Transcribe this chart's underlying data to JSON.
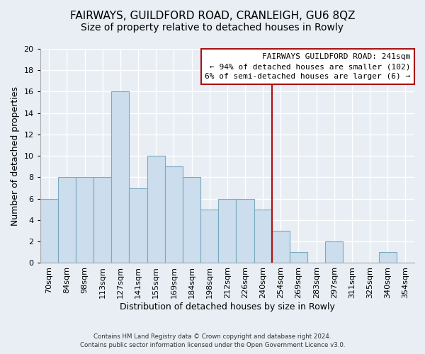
{
  "title": "FAIRWAYS, GUILDFORD ROAD, CRANLEIGH, GU6 8QZ",
  "subtitle": "Size of property relative to detached houses in Rowly",
  "xlabel": "Distribution of detached houses by size in Rowly",
  "ylabel": "Number of detached properties",
  "footer_line1": "Contains HM Land Registry data © Crown copyright and database right 2024.",
  "footer_line2": "Contains public sector information licensed under the Open Government Licence v3.0.",
  "bar_labels": [
    "70sqm",
    "84sqm",
    "98sqm",
    "113sqm",
    "127sqm",
    "141sqm",
    "155sqm",
    "169sqm",
    "184sqm",
    "198sqm",
    "212sqm",
    "226sqm",
    "240sqm",
    "254sqm",
    "269sqm",
    "283sqm",
    "297sqm",
    "311sqm",
    "325sqm",
    "340sqm",
    "354sqm"
  ],
  "bar_values": [
    6,
    8,
    8,
    8,
    16,
    7,
    10,
    9,
    8,
    5,
    6,
    6,
    5,
    3,
    1,
    0,
    2,
    0,
    0,
    1,
    0
  ],
  "bar_color": "#ccdded",
  "bar_edge_color": "#7aaabf",
  "vline_color": "#aa1111",
  "vline_x_index": 12,
  "ylim": [
    0,
    20
  ],
  "yticks": [
    0,
    2,
    4,
    6,
    8,
    10,
    12,
    14,
    16,
    18,
    20
  ],
  "legend_title": "FAIRWAYS GUILDFORD ROAD: 241sqm",
  "legend_line1": "← 94% of detached houses are smaller (102)",
  "legend_line2": "6% of semi-detached houses are larger (6) →",
  "legend_box_color": "#ffffff",
  "legend_border_color": "#aa1111",
  "background_color": "#e8eef4",
  "grid_color": "#ffffff",
  "title_fontsize": 11,
  "subtitle_fontsize": 10,
  "axis_label_fontsize": 9,
  "tick_fontsize": 8,
  "legend_fontsize": 8
}
